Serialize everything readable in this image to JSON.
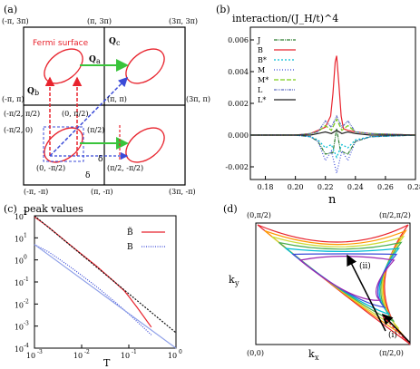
{
  "panel_a": {
    "letter": "(a)",
    "fermi_label": "Fermi surface",
    "labels": {
      "tl": "(-π, 3π)",
      "tm": "(π, 3π)",
      "tr": "(3π, 3π)",
      "ml": "(-π, π)",
      "mm": "(π, π)",
      "mr": "(3π, π)",
      "p1": "(0, π/2)",
      "p2": "(-π/2, π/2)",
      "p3": "(π/2)",
      "p4": "(-π/2, 0)",
      "p5": "(0, -π/2)",
      "p6": "(π/2, -π/2)",
      "bl": "(-π, -π)",
      "bm": "(π, -π)",
      "br": "(3π, -π)",
      "qa": "Q",
      "qa_sub": "a",
      "qb": "Q",
      "qb_sub": "b",
      "qc": "Q",
      "qc_sub": "c",
      "delta1": "δ",
      "delta2": "δ"
    },
    "colors": {
      "fermi": "#e8232d",
      "green": "#39c43b",
      "blue": "#3b4bd8",
      "red": "#e8232d"
    }
  },
  "panel_b": {
    "letter": "(b)",
    "chart_data": {
      "type": "line",
      "title": "interaction/(J_H/t)^4",
      "xlabel": "n",
      "xlim": [
        0.17,
        0.28
      ],
      "ylim": [
        -0.0028,
        0.0068
      ],
      "xticks": [
        "0.18",
        "0.20",
        "0.22",
        "0.24",
        "0.26",
        "0.28"
      ],
      "yticks": [
        "-0.002",
        "0.000",
        "0.002",
        "0.004",
        "0.006"
      ],
      "series": [
        {
          "name": "J",
          "color": "#2e7d32",
          "dash": "4,1,1,1",
          "x": [
            0.17,
            0.2,
            0.21,
            0.215,
            0.22,
            0.225,
            0.2275,
            0.23,
            0.235,
            0.24,
            0.25,
            0.28
          ],
          "y": [
            0,
            0,
            -0.0001,
            -0.0004,
            -0.0012,
            -0.0011,
            0.0004,
            -0.001,
            -0.0012,
            -0.0004,
            -0.0001,
            0
          ]
        },
        {
          "name": "B",
          "color": "#e8232d",
          "dash": "",
          "x": [
            0.17,
            0.2,
            0.21,
            0.215,
            0.22,
            0.2235,
            0.225,
            0.2265,
            0.2275,
            0.229,
            0.2305,
            0.232,
            0.235,
            0.24,
            0.25,
            0.28
          ],
          "y": [
            0,
            0,
            0.0001,
            0.0003,
            0.0005,
            0.0012,
            0.0026,
            0.0046,
            0.005,
            0.0032,
            0.0012,
            0.0004,
            0.0003,
            0.0002,
            0.0001,
            0
          ]
        },
        {
          "name": "B*",
          "color": "#00bcd4",
          "dash": "2,2",
          "x": [
            0.17,
            0.2,
            0.21,
            0.215,
            0.22,
            0.224,
            0.2275,
            0.231,
            0.235,
            0.24,
            0.25,
            0.28
          ],
          "y": [
            0,
            0,
            -0.0001,
            -0.0003,
            -0.0008,
            -0.0006,
            -0.0014,
            -0.0006,
            -0.0008,
            -0.0003,
            -0.0001,
            0
          ]
        },
        {
          "name": "M",
          "color": "#3b4bd8",
          "dash": "1,2",
          "x": [
            0.17,
            0.2,
            0.21,
            0.215,
            0.22,
            0.224,
            0.2275,
            0.231,
            0.235,
            0.24,
            0.25,
            0.28
          ],
          "y": [
            0,
            0,
            -0.0001,
            -0.0004,
            -0.0016,
            -0.001,
            -0.0024,
            -0.001,
            -0.0016,
            -0.0004,
            -0.0001,
            0
          ]
        },
        {
          "name": "M*",
          "color": "#7ccd1a",
          "dash": "5,2",
          "x": [
            0.17,
            0.2,
            0.21,
            0.215,
            0.22,
            0.224,
            0.2275,
            0.231,
            0.235,
            0.24,
            0.25,
            0.28
          ],
          "y": [
            0,
            0,
            0.0001,
            0.0002,
            0.0006,
            0.0003,
            0.001,
            0.0003,
            0.0006,
            0.0002,
            0.0001,
            0
          ]
        },
        {
          "name": "L",
          "color": "#5c6bc0",
          "dash": "3,1,1,1,1,1",
          "x": [
            0.17,
            0.2,
            0.21,
            0.215,
            0.22,
            0.224,
            0.2275,
            0.231,
            0.235,
            0.24,
            0.25,
            0.28
          ],
          "y": [
            0,
            0,
            0.0001,
            0.0002,
            0.0009,
            0.0005,
            0.0012,
            0.0005,
            0.0009,
            0.0002,
            0.0001,
            0
          ]
        },
        {
          "name": "L*",
          "color": "#222222",
          "dash": "",
          "x": [
            0.17,
            0.2,
            0.21,
            0.215,
            0.22,
            0.224,
            0.2275,
            0.231,
            0.235,
            0.24,
            0.25,
            0.28
          ],
          "y": [
            0,
            0,
            0,
            0.0001,
            0.0002,
            0.0001,
            0.0003,
            0.0001,
            0.0002,
            0.0001,
            0,
            0
          ]
        }
      ]
    }
  },
  "panel_c": {
    "letter": "(c)",
    "chart_data": {
      "type": "line",
      "title": "peak values",
      "xlabel": "T",
      "xscale": "log",
      "yscale": "log",
      "xlim": [
        0.001,
        1
      ],
      "ylim": [
        0.0001,
        100
      ],
      "xticks": [
        "10",
        "10",
        "10",
        "10"
      ],
      "xtick_exp": [
        "-3",
        "-2",
        "-1",
        "0"
      ],
      "yticks": [
        "10",
        "10",
        "10",
        "10",
        "10",
        "10",
        "10"
      ],
      "ytick_exp": [
        "2",
        "1",
        "0",
        "-1",
        "-2",
        "-3",
        "-4"
      ],
      "series": [
        {
          "name": "B̃",
          "color": "#e8232d",
          "dash": "",
          "x": [
            0.001,
            0.002,
            0.005,
            0.01,
            0.02,
            0.05,
            0.08,
            0.1,
            0.15,
            0.2,
            0.3
          ],
          "y": [
            90,
            30,
            6,
            1.8,
            0.55,
            0.1,
            0.04,
            0.022,
            0.007,
            0.003,
            0.0009
          ]
        },
        {
          "name": "B",
          "color": "#3b4bd8",
          "dash": "1,1.5",
          "x": [
            0.001,
            0.002,
            0.005,
            0.01,
            0.02,
            0.05,
            0.1,
            0.2,
            0.3
          ],
          "y": [
            5,
            2.3,
            0.6,
            0.2,
            0.065,
            0.013,
            0.0035,
            0.0009,
            0.0004
          ]
        },
        {
          "name": "",
          "color": "#111111",
          "dash": "2,1.5",
          "x": [
            0.001,
            1
          ],
          "y": [
            100,
            0.0005
          ]
        },
        {
          "name": "",
          "color": "#8fa0e8",
          "dash": "",
          "x": [
            0.001,
            1
          ],
          "y": [
            5,
            0.0001
          ]
        }
      ]
    }
  },
  "panel_d": {
    "letter": "(d)",
    "labels": {
      "tl": "(0,π/2)",
      "tr": "(π/2,π/2)",
      "bl": "(0,0)",
      "br": "(π/2,0)",
      "ky": "k",
      "ky_sub": "y",
      "kx": "k",
      "kx_sub": "x",
      "ii": "(ii)",
      "i": "(i)"
    },
    "contour_colors": [
      "#e8232d",
      "#ff9800",
      "#cddc39",
      "#4caf50",
      "#00bcd4",
      "#3b4bd8",
      "#9c27b0"
    ]
  }
}
